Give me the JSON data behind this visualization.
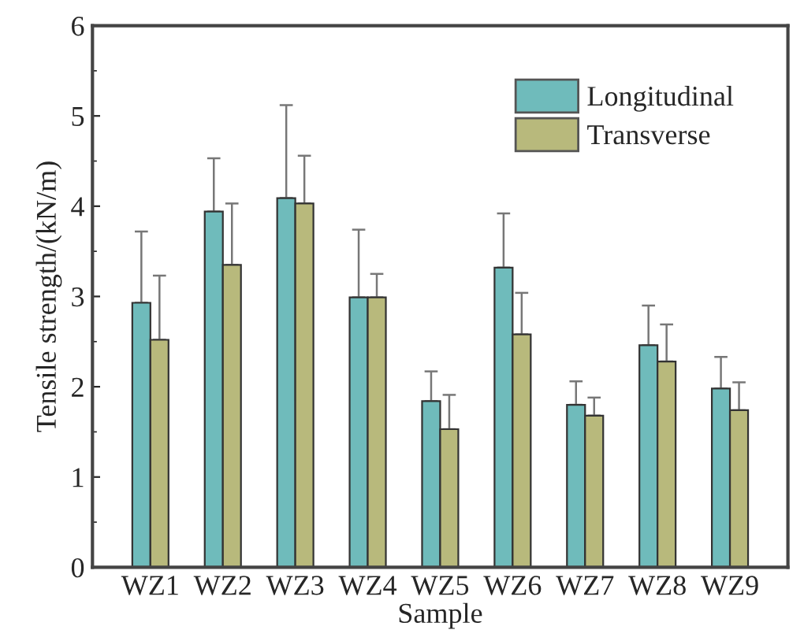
{
  "chart_data": {
    "type": "bar",
    "xlabel": "Sample",
    "ylabel": "Tensile strength/(kN/m)",
    "categories": [
      "WZ1",
      "WZ2",
      "WZ3",
      "WZ4",
      "WZ5",
      "WZ6",
      "WZ7",
      "WZ8",
      "WZ9"
    ],
    "series": [
      {
        "name": "Longitudinal",
        "color": "#6fbbbb",
        "values": [
          2.93,
          3.94,
          4.09,
          2.99,
          1.84,
          3.32,
          1.8,
          2.46,
          1.98
        ],
        "errors": [
          [
            2.93,
            3.72
          ],
          [
            3.94,
            4.53
          ],
          [
            4.09,
            5.12
          ],
          [
            2.99,
            3.74
          ],
          [
            1.84,
            2.17
          ],
          [
            3.32,
            3.92
          ],
          [
            1.8,
            2.06
          ],
          [
            2.46,
            2.9
          ],
          [
            1.98,
            2.33
          ]
        ]
      },
      {
        "name": "Transverse",
        "color": "#b8b97c",
        "values": [
          2.52,
          3.35,
          4.03,
          2.99,
          1.53,
          2.58,
          1.68,
          2.28,
          1.74
        ],
        "errors": [
          [
            2.52,
            3.23
          ],
          [
            3.35,
            4.03
          ],
          [
            4.03,
            4.56
          ],
          [
            2.99,
            3.25
          ],
          [
            1.53,
            1.91
          ],
          [
            2.58,
            3.04
          ],
          [
            1.68,
            1.88
          ],
          [
            2.28,
            2.69
          ],
          [
            1.74,
            2.05
          ]
        ]
      }
    ],
    "ylim": [
      0,
      6
    ],
    "yticks": [
      0,
      1,
      2,
      3,
      4,
      5,
      6
    ],
    "legend": "top right",
    "grid": false
  }
}
